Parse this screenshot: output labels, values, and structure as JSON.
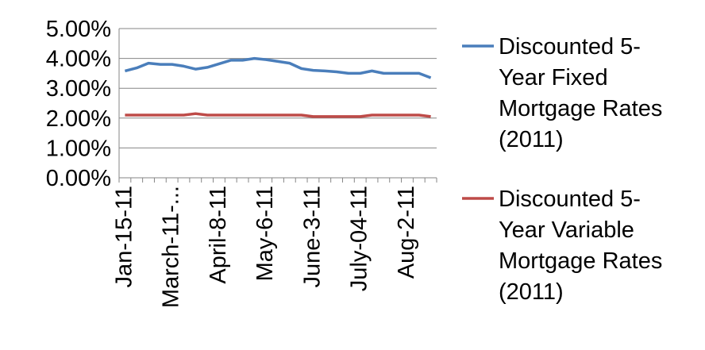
{
  "chart_data": {
    "type": "line",
    "title": "",
    "xlabel": "",
    "ylabel": "",
    "ylim": [
      0,
      0.05
    ],
    "y_ticks": [
      "0.00%",
      "1.00%",
      "2.00%",
      "3.00%",
      "4.00%",
      "5.00%"
    ],
    "x_tick_labels": [
      "Jan-15-11",
      "March-11-...",
      "April-8-11",
      "May-6-11",
      "June-3-11",
      "July-04-11",
      "Aug-2-11"
    ],
    "x_tick_positions": [
      0,
      4,
      8,
      12,
      16,
      20,
      24
    ],
    "n_points": 27,
    "grid": "horizontal",
    "legend_position": "right",
    "series": [
      {
        "name": "Discounted 5-Year Fixed Mortgage Rates (2011)",
        "legend_lines": [
          "Discounted 5-",
          "Year Fixed",
          "Mortgage Rates",
          "(2011)"
        ],
        "color": "#4a7ebb",
        "values": [
          0.0358,
          0.0368,
          0.0384,
          0.038,
          0.038,
          0.0374,
          0.0364,
          0.037,
          0.0382,
          0.0394,
          0.0394,
          0.04,
          0.0396,
          0.039,
          0.0384,
          0.0366,
          0.036,
          0.0358,
          0.0355,
          0.035,
          0.035,
          0.0358,
          0.035,
          0.035,
          0.035,
          0.035,
          0.0335
        ]
      },
      {
        "name": "Discounted 5-Year Variable Mortgage Rates (2011)",
        "legend_lines": [
          "Discounted 5-",
          "Year Variable",
          "Mortgage Rates",
          "(2011)"
        ],
        "color": "#be4b48",
        "values": [
          0.021,
          0.021,
          0.021,
          0.021,
          0.021,
          0.021,
          0.0215,
          0.021,
          0.021,
          0.021,
          0.021,
          0.021,
          0.021,
          0.021,
          0.021,
          0.021,
          0.0205,
          0.0205,
          0.0205,
          0.0205,
          0.0205,
          0.021,
          0.021,
          0.021,
          0.021,
          0.021,
          0.0205
        ]
      }
    ]
  }
}
